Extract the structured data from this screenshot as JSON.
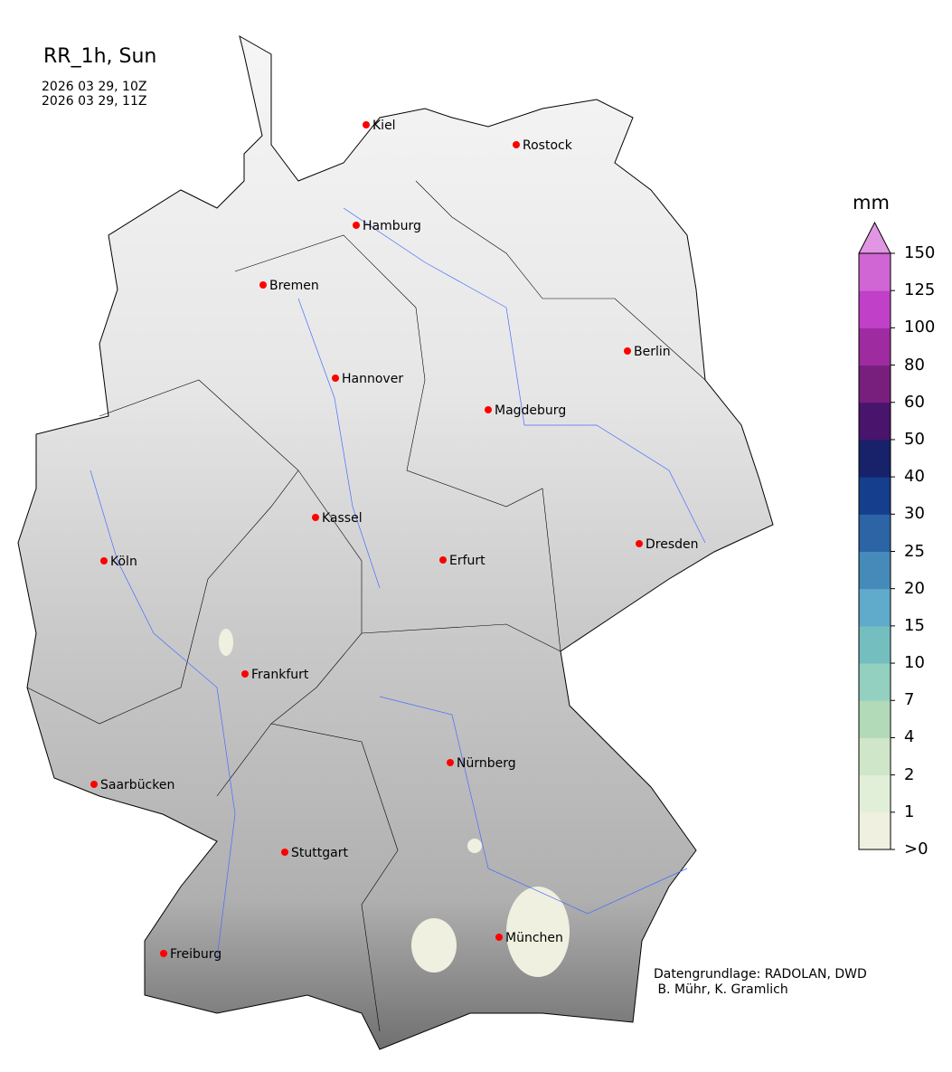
{
  "title": "RR_1h, Sun",
  "time_start": "2026 03 29, 10Z",
  "time_end": "2026 03 29, 11Z",
  "cities": [
    "Kiel",
    "Rostock",
    "Hamburg",
    "Bremen",
    "Berlin",
    "Hannover",
    "Magdeburg",
    "Kassel",
    "Köln",
    "Erfurt",
    "Dresden",
    "Frankfurt",
    "Nürnberg",
    "Saarbücken",
    "Stuttgart",
    "München",
    "Freiburg"
  ],
  "colorbar": {
    "unit": "mm",
    "ticks": [
      ">0",
      "1",
      "2",
      "4",
      "7",
      "10",
      "15",
      "20",
      "25",
      "30",
      "40",
      "50",
      "60",
      "80",
      "100",
      "125",
      "150"
    ],
    "colors": [
      "#f0f0e0",
      "#e2efd8",
      "#d0e6c8",
      "#b2dab9",
      "#93d0c0",
      "#74bec0",
      "#60aacc",
      "#468ab9",
      "#2c64a6",
      "#153e8c",
      "#17226a",
      "#48146c",
      "#781f7e",
      "#9e2ba0",
      "#c040c8",
      "#d065d4"
    ],
    "extend_color": "#e096e2"
  },
  "credit": "Datengrundlage: RADOLAN, DWD\n B. Mühr, K. Gramlich"
}
